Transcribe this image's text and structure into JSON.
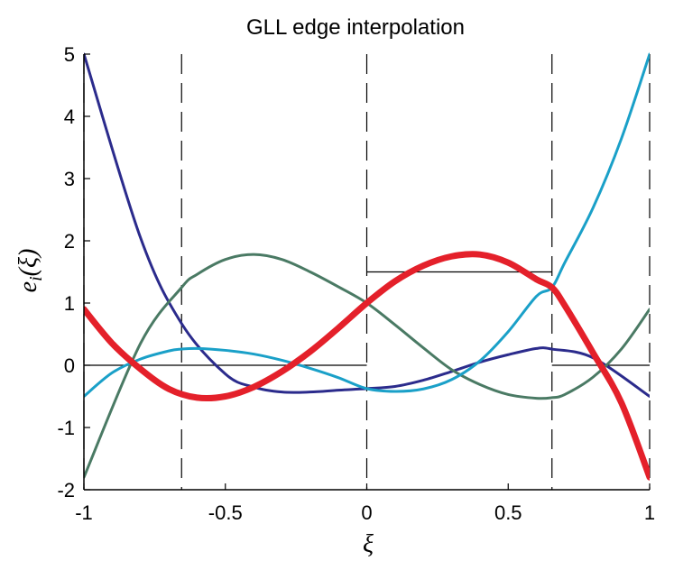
{
  "chart_data": {
    "type": "line",
    "title": "GLL edge interpolation",
    "xlabel": "ξ",
    "ylabel": {
      "main": "e",
      "subscript": "i",
      "arg": "(ξ)"
    },
    "xlim": [
      -1,
      1
    ],
    "ylim": [
      -2,
      5
    ],
    "xticks": [
      -1,
      -0.5,
      0,
      0.5,
      1
    ],
    "xtick_labels": [
      "-1",
      "-0.5",
      "0",
      "0.5",
      "1"
    ],
    "yticks": [
      -2,
      -1,
      0,
      1,
      2,
      3,
      4,
      5
    ],
    "ytick_labels": [
      "-2",
      "-1",
      "0",
      "1",
      "2",
      "3",
      "4",
      "5"
    ],
    "grid": false,
    "legend": "none",
    "gll_nodes": [
      -1,
      -0.6547,
      0,
      0.6547,
      1
    ],
    "series": [
      {
        "color": "#2b2b8c",
        "width": 3,
        "x": [
          -1,
          -0.8,
          -0.6547,
          -0.5,
          -0.4,
          -0.3,
          -0.2,
          -0.1,
          0,
          0.1,
          0.2,
          0.3,
          0.4,
          0.5,
          0.6,
          0.6547,
          0.8,
          1
        ],
        "y": [
          5.0,
          2.05,
          0.67,
          -0.14,
          -0.35,
          -0.43,
          -0.43,
          -0.4,
          -0.375,
          -0.34,
          -0.24,
          -0.1,
          0.05,
          0.17,
          0.27,
          0.26,
          0.12,
          -0.5
        ]
      },
      {
        "color": "#4a7a64",
        "width": 3,
        "x": [
          -1,
          -0.8,
          -0.6547,
          -0.6,
          -0.5,
          -0.4,
          -0.3,
          -0.2,
          -0.1,
          0,
          0.1,
          0.2,
          0.3,
          0.4,
          0.5,
          0.6,
          0.6547,
          0.7,
          0.8,
          0.9,
          1
        ],
        "y": [
          -1.8,
          0.35,
          1.25,
          1.46,
          1.7,
          1.78,
          1.7,
          1.5,
          1.26,
          1.0,
          0.65,
          0.28,
          -0.07,
          -0.31,
          -0.47,
          -0.53,
          -0.52,
          -0.47,
          -0.19,
          0.26,
          0.9
        ]
      },
      {
        "color": "#1aa0c8",
        "width": 3,
        "x": [
          -1,
          -0.9,
          -0.8,
          -0.7,
          -0.6547,
          -0.6,
          -0.5,
          -0.4,
          -0.3,
          -0.2,
          -0.1,
          0,
          0.1,
          0.2,
          0.3,
          0.4,
          0.5,
          0.6,
          0.6547,
          0.7,
          0.8,
          0.9,
          1
        ],
        "y": [
          -0.5,
          -0.12,
          0.1,
          0.23,
          0.26,
          0.27,
          0.24,
          0.18,
          0.08,
          -0.05,
          -0.2,
          -0.375,
          -0.42,
          -0.38,
          -0.23,
          0.07,
          0.54,
          1.11,
          1.25,
          1.65,
          2.53,
          3.64,
          5.0
        ]
      },
      {
        "color": "#e4202a",
        "width": 7,
        "x": [
          -1,
          -0.9,
          -0.8,
          -0.7,
          -0.6,
          -0.5,
          -0.4,
          -0.3,
          -0.2,
          -0.1,
          0,
          0.1,
          0.2,
          0.3,
          0.4,
          0.5,
          0.6,
          0.6547,
          0.7,
          0.8,
          0.9,
          1
        ],
        "y": [
          0.9,
          0.35,
          -0.06,
          -0.38,
          -0.52,
          -0.5,
          -0.35,
          -0.1,
          0.22,
          0.6,
          1.0,
          1.35,
          1.6,
          1.75,
          1.78,
          1.65,
          1.38,
          1.25,
          0.96,
          0.2,
          -0.6,
          -1.8
        ]
      }
    ],
    "step_function": {
      "color": "#000000",
      "width": 1.2,
      "segments": [
        {
          "x": [
            -1,
            0
          ],
          "y": [
            0,
            0
          ]
        },
        {
          "x": [
            0,
            0.6547
          ],
          "y": [
            1.5,
            1.5
          ]
        },
        {
          "x": [
            0.6547,
            1
          ],
          "y": [
            0,
            0
          ]
        }
      ]
    }
  }
}
